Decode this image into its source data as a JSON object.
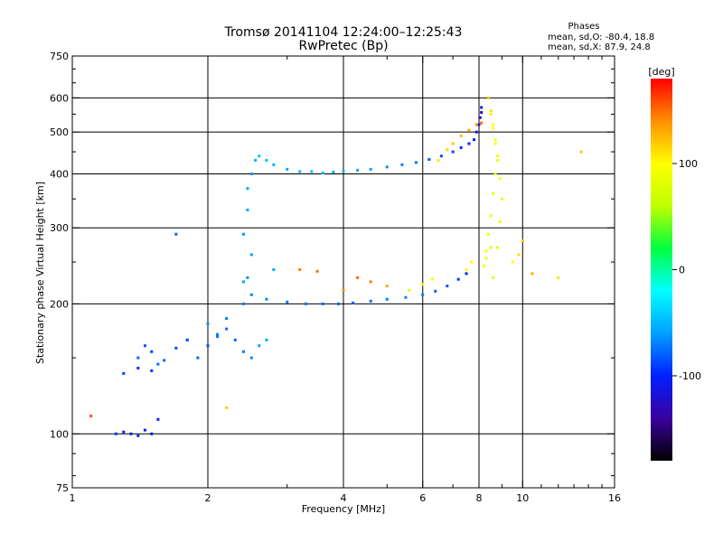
{
  "header": {
    "title_line1": "Tromsø 20141104 12:24:00–12:25:43",
    "title_line2": "RwPretec (Bp)"
  },
  "info": {
    "heading": "Phases",
    "line_o": "mean, sd,O: -80.4, 18.8",
    "line_x": "mean, sd,X:  87.9, 24.8"
  },
  "chart_data": {
    "type": "scatter",
    "title": "Tromsø 20141104 12:24:00–12:25:43",
    "subtitle": "RwPretec (Bp)",
    "xlabel": "Frequency [MHz]",
    "ylabel": "Stationary phase Virtual Height [km]",
    "x_scale": "log",
    "y_scale": "log",
    "xlim": [
      1,
      16
    ],
    "ylim": [
      75,
      750
    ],
    "xticks": [
      1,
      2,
      4,
      6,
      8,
      10,
      16
    ],
    "yticks": [
      75,
      100,
      200,
      300,
      400,
      500,
      600,
      750
    ],
    "x_gridlines": [
      2,
      4,
      6,
      8,
      10
    ],
    "y_gridlines": [
      100,
      200,
      300,
      400,
      500,
      600
    ],
    "grid": true,
    "colorbar": {
      "label": "[deg]",
      "range": [
        -180,
        180
      ],
      "ticks": [
        100,
        0,
        -100
      ],
      "colors": [
        "#000000",
        "#3a00a0",
        "#0020ff",
        "#00a0ff",
        "#00ffff",
        "#00ff40",
        "#c0ff00",
        "#ffff00",
        "#ff9000",
        "#ff0000"
      ]
    },
    "series": [
      {
        "comment": "O-mode traces (blue, phase about -80 deg)",
        "x": [
          1.4,
          1.45,
          1.5,
          1.55,
          1.5,
          1.6,
          1.7,
          1.8,
          1.9,
          2.0,
          2.1,
          2.2,
          2.3,
          2.4,
          2.5,
          2.6,
          2.7,
          2.4,
          2.45,
          2.5,
          2.4,
          2.45,
          2.45,
          2.5,
          2.55,
          2.6,
          2.7,
          2.8,
          3.0,
          3.2,
          3.4,
          3.6,
          3.8,
          4.0,
          4.3,
          4.6,
          5.0,
          5.4,
          5.8,
          6.2,
          6.6,
          7.0,
          7.3,
          7.6,
          7.8,
          7.9,
          8.0,
          8.05,
          8.1,
          8.1,
          2.5,
          2.7,
          3.0,
          3.3,
          3.6,
          3.9,
          4.2,
          4.6,
          5.0,
          5.5,
          6.0,
          6.4,
          6.8,
          7.2,
          7.5,
          1.25,
          1.3,
          1.35,
          1.4,
          1.45,
          1.5,
          1.3,
          1.4,
          1.55,
          2.0,
          2.2,
          2.1,
          1.7,
          2.4,
          2.8,
          1.8
        ],
        "y": [
          150,
          160,
          155,
          145,
          140,
          148,
          158,
          165,
          150,
          160,
          170,
          175,
          165,
          155,
          150,
          160,
          165,
          200,
          230,
          260,
          290,
          330,
          370,
          400,
          430,
          440,
          430,
          420,
          410,
          405,
          405,
          402,
          404,
          406,
          408,
          410,
          415,
          420,
          425,
          432,
          440,
          450,
          460,
          470,
          480,
          500,
          520,
          540,
          555,
          570,
          210,
          205,
          202,
          200,
          200,
          200,
          201,
          203,
          205,
          207,
          210,
          214,
          220,
          228,
          235,
          100,
          101,
          100,
          99,
          102,
          100,
          138,
          142,
          108,
          180,
          185,
          168,
          290,
          225,
          240,
          165
        ],
        "phase": [
          -80,
          -85,
          -90,
          -75,
          -95,
          -80,
          -88,
          -82,
          -78,
          -85,
          -70,
          -75,
          -80,
          -72,
          -68,
          -60,
          -55,
          -70,
          -65,
          -60,
          -62,
          -58,
          -55,
          -60,
          -50,
          -45,
          -48,
          -52,
          -55,
          -50,
          -48,
          -52,
          -55,
          -50,
          -58,
          -60,
          -65,
          -70,
          -75,
          -80,
          -85,
          -90,
          -95,
          -100,
          -105,
          -110,
          -115,
          -120,
          -125,
          -110,
          -70,
          -68,
          -72,
          -75,
          -78,
          -80,
          -82,
          -75,
          -70,
          -68,
          -72,
          -78,
          -85,
          -92,
          -100,
          -95,
          -100,
          -105,
          -98,
          -102,
          -110,
          -90,
          -95,
          -100,
          -65,
          -70,
          -75,
          -80,
          -60,
          -55,
          -85
        ]
      },
      {
        "comment": "X-mode traces (green/yellow/orange, phase about +88 deg)",
        "x": [
          8.4,
          8.5,
          8.6,
          8.7,
          8.8,
          8.7,
          8.6,
          8.5,
          8.4,
          8.3,
          8.2,
          8.6,
          8.8,
          8.9,
          9.0,
          8.9,
          8.8,
          8.7,
          8.6,
          8.5,
          6.5,
          6.8,
          7.0,
          7.3,
          7.6,
          7.9,
          8.1,
          5.6,
          6.0,
          6.3,
          4.0,
          4.3,
          4.6,
          5.0,
          7.5,
          7.7,
          8.3,
          8.5,
          9.5,
          9.8,
          10.0,
          10.5,
          12.0,
          13.5,
          3.2,
          3.5,
          2.2,
          1.1
        ],
        "y": [
          600,
          560,
          520,
          480,
          440,
          400,
          360,
          320,
          290,
          265,
          245,
          230,
          270,
          310,
          350,
          390,
          430,
          470,
          510,
          550,
          430,
          455,
          470,
          490,
          505,
          520,
          525,
          215,
          222,
          228,
          215,
          230,
          225,
          220,
          240,
          250,
          255,
          270,
          250,
          260,
          280,
          235,
          230,
          450,
          240,
          238,
          115,
          110
        ],
        "phase": [
          120,
          110,
          100,
          95,
          90,
          92,
          88,
          85,
          90,
          95,
          100,
          80,
          85,
          88,
          90,
          92,
          95,
          98,
          100,
          105,
          110,
          115,
          120,
          125,
          130,
          140,
          150,
          80,
          90,
          95,
          140,
          150,
          145,
          130,
          100,
          95,
          90,
          85,
          100,
          110,
          120,
          130,
          110,
          120,
          145,
          150,
          120,
          155
        ]
      }
    ],
    "annotations": [
      {
        "text": "Phases"
      },
      {
        "text": "mean, sd,O: -80.4, 18.8"
      },
      {
        "text": "mean, sd,X:  87.9, 24.8"
      }
    ]
  }
}
